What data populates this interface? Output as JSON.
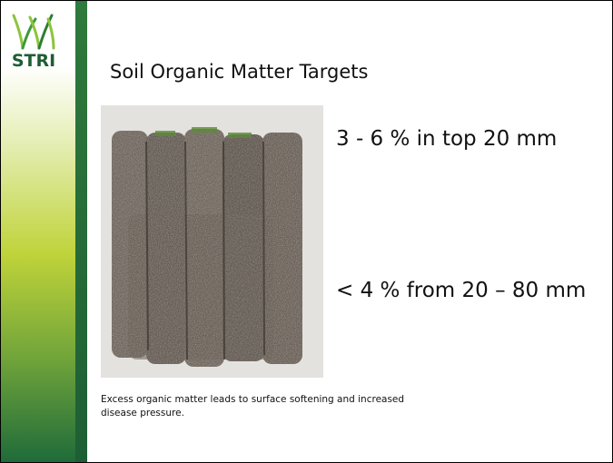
{
  "logo": {
    "text": "STRI"
  },
  "title": "Soil Organic Matter Targets",
  "points": [
    "3 - 6 % in top 20 mm",
    "< 4 % from 20 – 80 mm"
  ],
  "caption": "Excess organic matter leads to surface softening and increased disease pressure."
}
